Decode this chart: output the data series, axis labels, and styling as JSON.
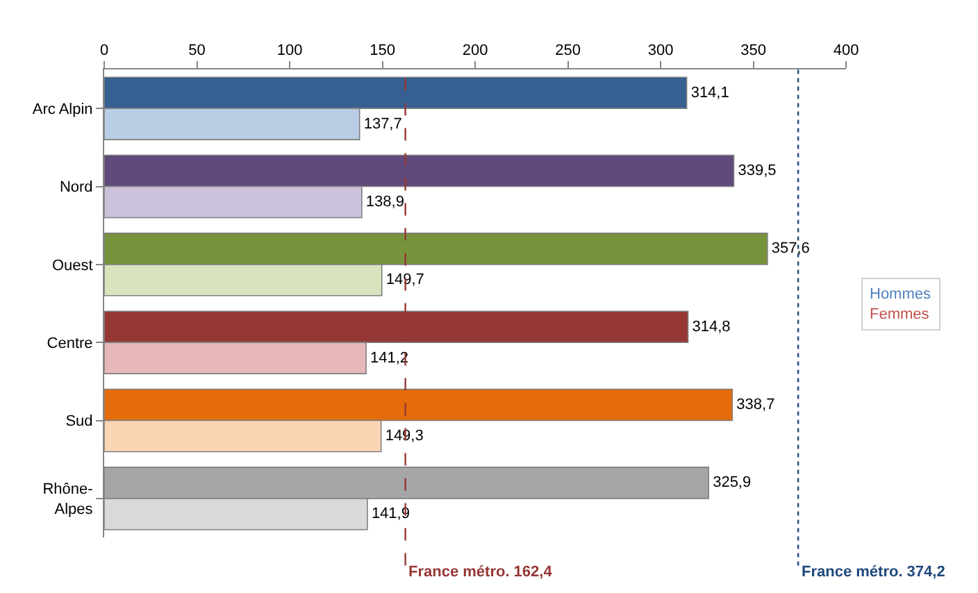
{
  "chart_data": {
    "type": "bar",
    "orientation": "horizontal",
    "categories": [
      "Arc Alpin",
      "Nord",
      "Ouest",
      "Centre",
      "Sud",
      "Rhône-Alpes"
    ],
    "series": [
      {
        "name": "Hommes",
        "color": "#4f81bd",
        "colors": [
          "#376092",
          "#604a7b",
          "#77933c",
          "#953735",
          "#e46c0a",
          "#a6a6a6"
        ],
        "values": [
          314.1,
          339.5,
          357.6,
          314.8,
          338.7,
          325.9
        ],
        "value_labels": [
          "314,1",
          "339,5",
          "357,6",
          "314,8",
          "338,7",
          "325,9"
        ]
      },
      {
        "name": "Femmes",
        "color": "#c0504d",
        "colors": [
          "#b9cde5",
          "#ccc1da",
          "#d7e4bd",
          "#e6b9b8",
          "#fcd5b5",
          "#d9d9d9"
        ],
        "values": [
          137.7,
          138.9,
          149.7,
          141.2,
          149.3,
          141.9
        ],
        "value_labels": [
          "137,7",
          "138,9",
          "149,7",
          "141,2",
          "149,3",
          "141,9"
        ]
      }
    ],
    "xlim": [
      0,
      400
    ],
    "xticks": [
      0,
      50,
      100,
      150,
      200,
      250,
      300,
      350,
      400
    ],
    "ref_lines": [
      {
        "axis": "x",
        "value": 162.4,
        "label": "France métro. 162,4",
        "color": "#953735",
        "line_style": "dashed"
      },
      {
        "axis": "x",
        "value": 374.2,
        "label": "France métro. 374,2",
        "color": "#1f497d",
        "line_style": "dotted"
      }
    ],
    "legend": "right"
  }
}
